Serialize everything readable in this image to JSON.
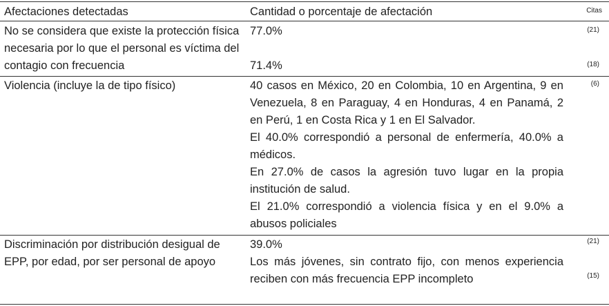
{
  "table": {
    "header": [
      "Afectaciones detectadas",
      "Cantidad o porcentaje de afectación",
      "Citas"
    ],
    "rows": [
      {
        "label": "No se considera que existe la protección física necesaria por lo que el personal es víctima del contagio con frecuencia",
        "entries": [
          {
            "text": "77.0%",
            "cite": "(21)"
          },
          {
            "text": "71.4%",
            "cite": "(18)"
          }
        ]
      },
      {
        "label": "Violencia (incluye la de tipo físico)",
        "entries": [
          {
            "text": "40 casos en México, 20 en Colombia, 10 en Argentina, 9 en Venezuela, 8 en Paraguay, 4 en Honduras, 4 en Panamá, 2 en Perú, 1 en Costa Rica y 1 en El Salvador."
          },
          {
            "text": "El 40.0% correspondió a personal de enfermería, 40.0% a médicos."
          },
          {
            "text": "En 27.0% de casos la agresión tuvo lugar en la propia institución de salud."
          },
          {
            "text": "El 21.0% correspondió a violencia física y en el 9.0% a abusos policiales"
          }
        ],
        "cite": "(6)"
      },
      {
        "label": "Discriminación por distribución desigual de EPP, por edad, por ser personal de apoyo",
        "entries": [
          {
            "text": "39.0%",
            "cite": "(21)"
          },
          {
            "text": "Los más jóvenes, sin contrato fijo, con menos experiencia reciben con más frecuencia EPP incompleto",
            "cite": "(15)"
          }
        ]
      }
    ]
  }
}
